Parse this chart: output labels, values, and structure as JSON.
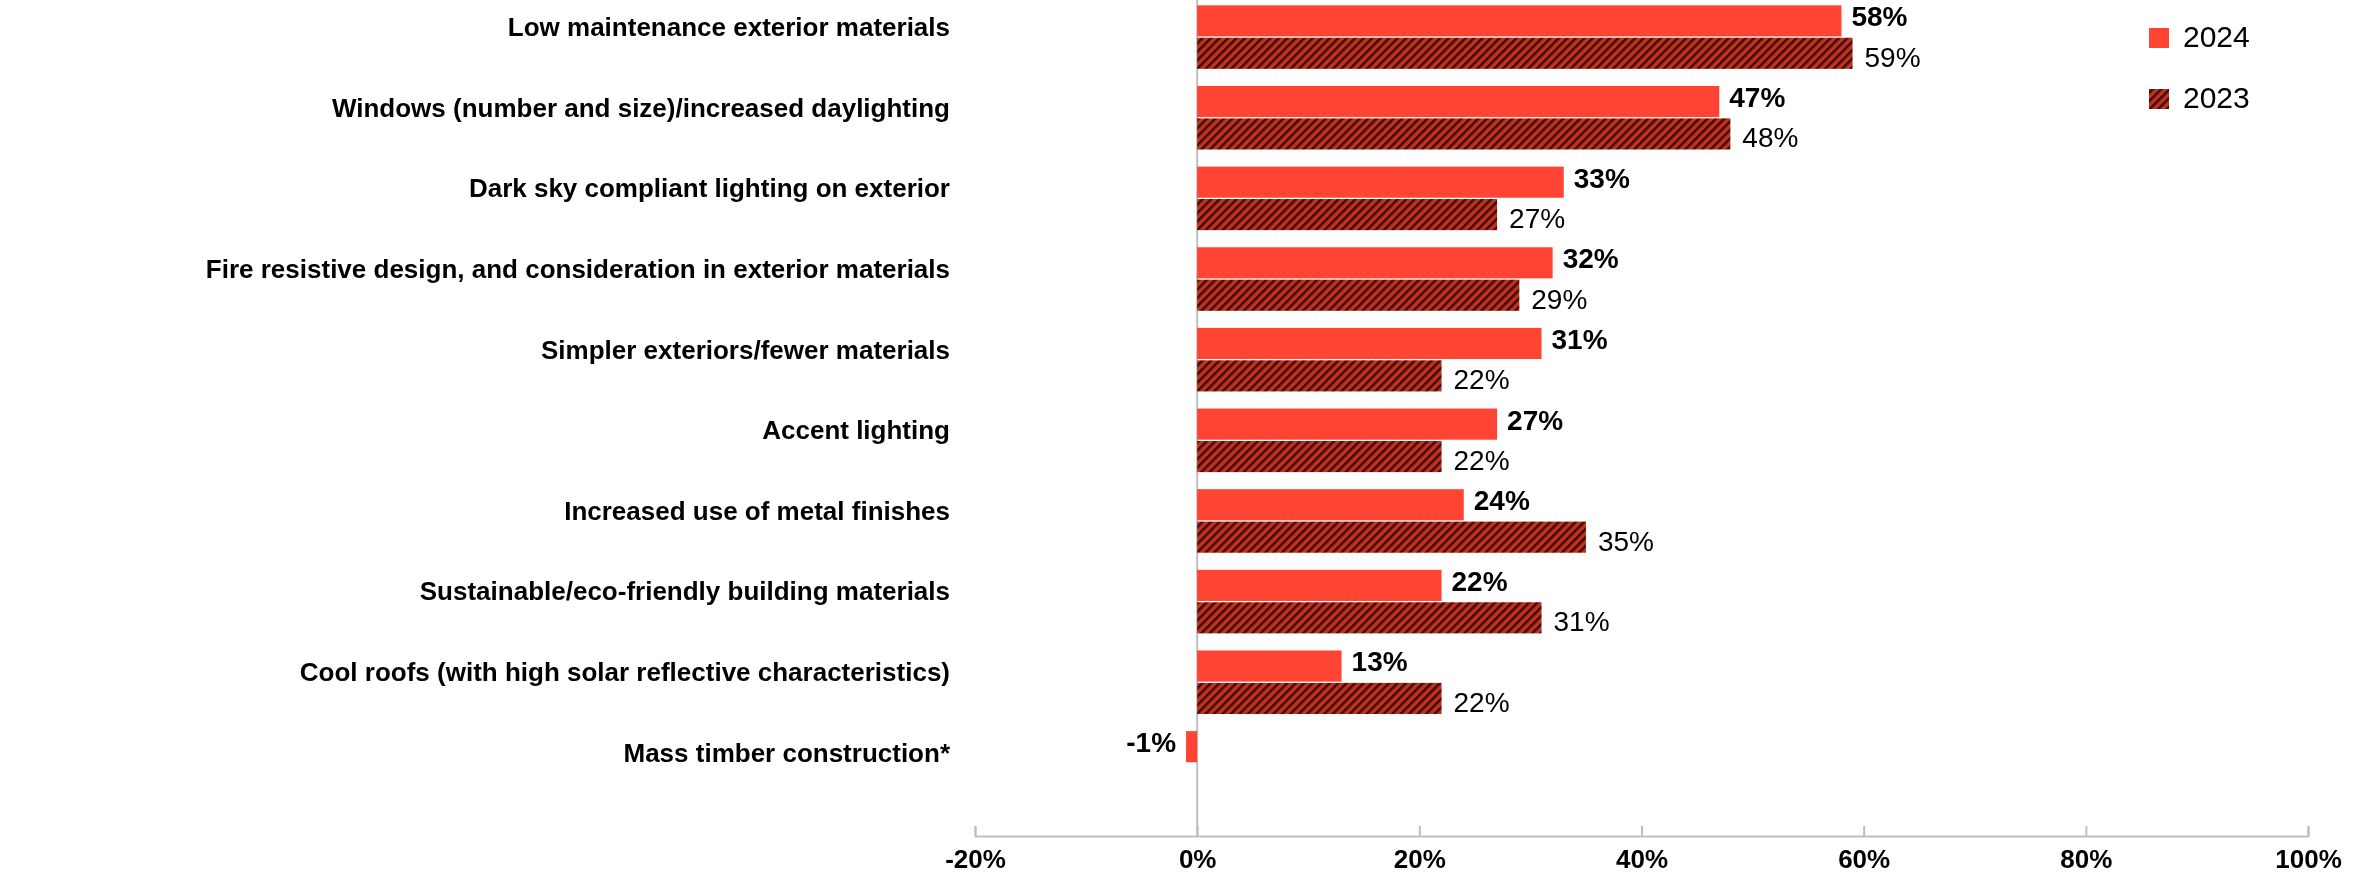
{
  "chart_data": {
    "type": "bar",
    "orientation": "horizontal",
    "categories": [
      "Low maintenance exterior materials",
      "Windows (number and size)/increased daylighting",
      "Dark sky compliant lighting on exterior",
      "Fire resistive design, and consideration in exterior materials",
      "Simpler exteriors/fewer materials",
      "Accent lighting",
      "Increased use of metal finishes",
      "Sustainable/eco-friendly building materials",
      "Cool roofs (with high solar reflective characteristics)",
      "Mass timber construction*"
    ],
    "series": [
      {
        "name": "2024",
        "color": "#ff4433",
        "values": [
          58,
          47,
          33,
          32,
          31,
          27,
          24,
          22,
          13,
          -1
        ],
        "value_labels": [
          "58%",
          "47%",
          "33%",
          "32%",
          "31%",
          "27%",
          "24%",
          "22%",
          "13%",
          "-1%"
        ]
      },
      {
        "name": "2023",
        "color": "#c4301f",
        "values": [
          59,
          48,
          27,
          29,
          22,
          22,
          35,
          31,
          22,
          null
        ],
        "value_labels": [
          "59%",
          "48%",
          "27%",
          "29%",
          "22%",
          "22%",
          "35%",
          "31%",
          "22%",
          null
        ]
      }
    ],
    "xlim": [
      -20,
      100
    ],
    "xticks": [
      {
        "value": -20,
        "label": "-20%"
      },
      {
        "value": 0,
        "label": "0%"
      },
      {
        "value": 20,
        "label": "20%"
      },
      {
        "value": 40,
        "label": "40%"
      },
      {
        "value": 60,
        "label": "60%"
      },
      {
        "value": 80,
        "label": "80%"
      },
      {
        "value": 100,
        "label": "100%"
      }
    ],
    "legend": "top right"
  }
}
